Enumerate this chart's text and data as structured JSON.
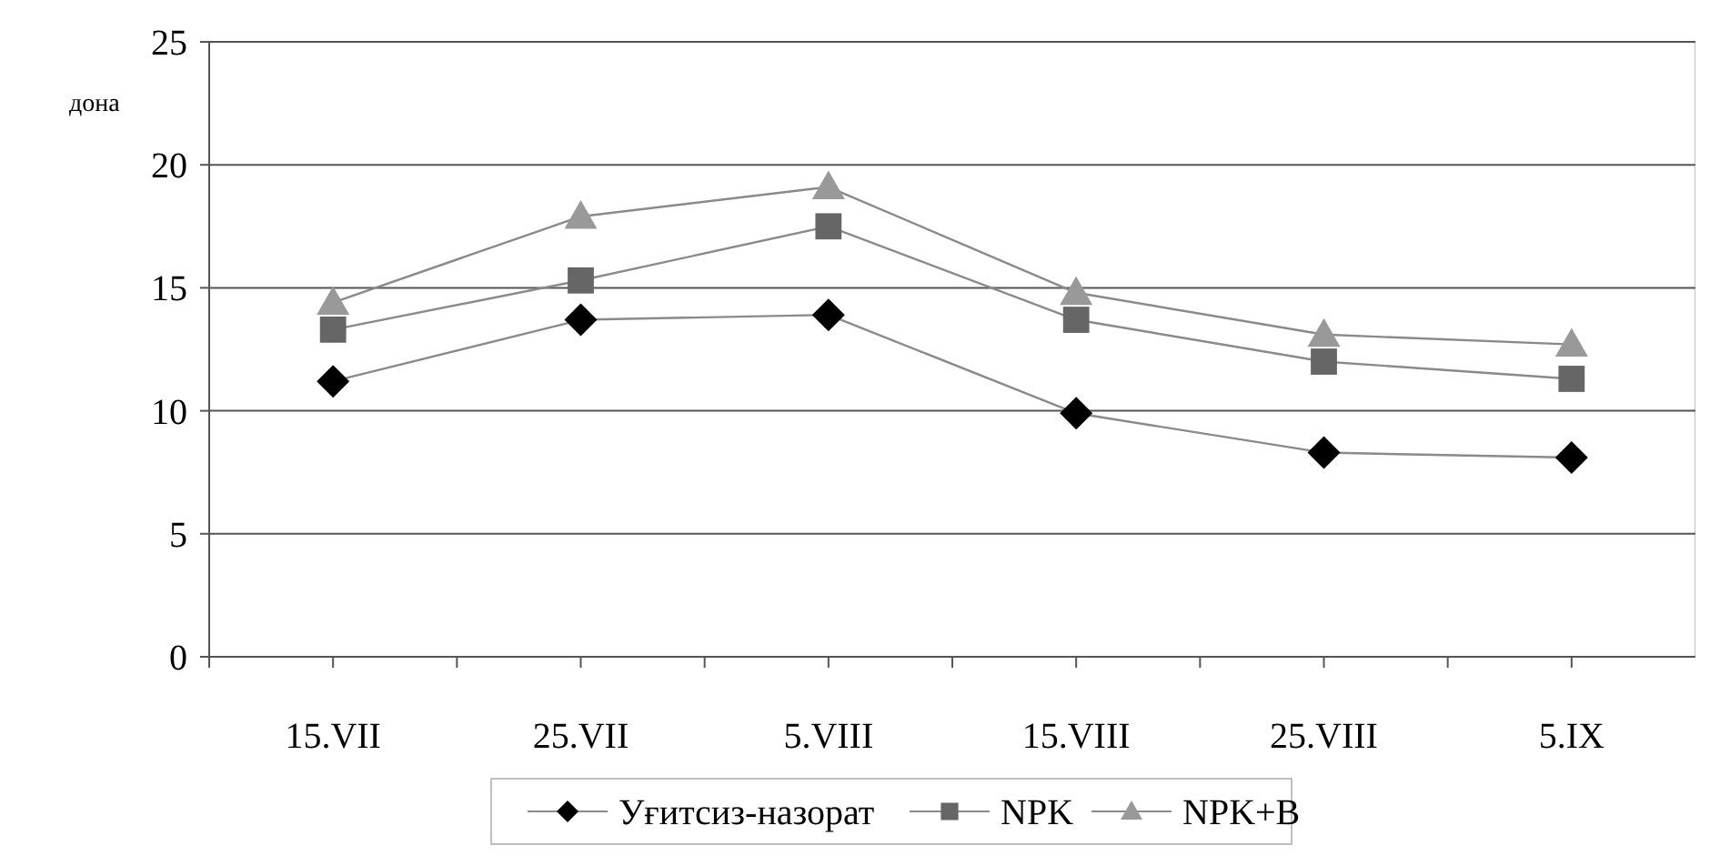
{
  "chart_data": {
    "type": "line",
    "ylabel": "дона",
    "categories": [
      "15.VII",
      "25.VII",
      "5.VIII",
      "15.VIII",
      "25.VIII",
      "5.IX"
    ],
    "series": [
      {
        "name": "Уғитсиз-назорат",
        "color": "#000000",
        "marker": "diamond",
        "values": [
          11.2,
          13.7,
          13.9,
          9.9,
          8.3,
          8.1
        ]
      },
      {
        "name": "NPK",
        "color": "#666666",
        "marker": "square",
        "values": [
          13.3,
          15.3,
          17.5,
          13.7,
          12.0,
          11.3
        ]
      },
      {
        "name": "NPK+B",
        "color": "#999999",
        "marker": "triangle",
        "values": [
          14.4,
          17.9,
          19.1,
          14.8,
          13.1,
          12.7
        ]
      }
    ],
    "ylim": [
      0,
      25
    ],
    "yticks": [
      0,
      5,
      10,
      15,
      20,
      25
    ],
    "grid": "y",
    "legend": "bottom"
  }
}
